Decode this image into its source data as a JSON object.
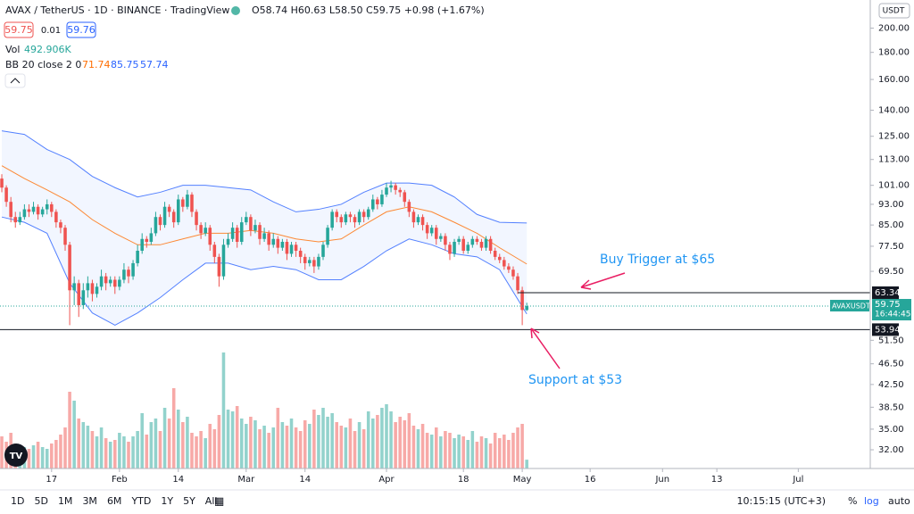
{
  "header": {
    "title": "AVAX / TetherUS · 1D · BINANCE · TradingView",
    "ohlc": "O58.74 H60.63 L58.50 C59.75 +0.98 (+1.67%)",
    "bid": "59.75",
    "spread": "0.01",
    "ask": "59.76",
    "currency": "USDT"
  },
  "toolbar": {
    "ranges": [
      "1D",
      "5D",
      "1M",
      "3M",
      "6M",
      "YTD",
      "1Y",
      "5Y",
      "All"
    ],
    "clock": "10:15:15 (UTC+3)",
    "options": [
      "%",
      "log",
      "auto"
    ]
  },
  "chart_data": {
    "type": "candlestick",
    "up_color": "#26a69a",
    "down_color": "#ef5350",
    "log_scale": true,
    "ylim": [
      29.5,
      226
    ],
    "yticks": [
      {
        "value": 200,
        "label": "200.00"
      },
      {
        "value": 180,
        "label": "180.00"
      },
      {
        "value": 160,
        "label": "160.00"
      },
      {
        "value": 140,
        "label": "140.00"
      },
      {
        "value": 125,
        "label": "125.00"
      },
      {
        "value": 113,
        "label": "113.00"
      },
      {
        "value": 101,
        "label": "101.00"
      },
      {
        "value": 93,
        "label": "93.00"
      },
      {
        "value": 85,
        "label": "85.00"
      },
      {
        "value": 77.5,
        "label": "77.50"
      },
      {
        "value": 69.5,
        "label": "69.50"
      },
      {
        "value": 51.5,
        "label": "51.50"
      },
      {
        "value": 46.5,
        "label": "46.50"
      },
      {
        "value": 42.5,
        "label": "42.50"
      },
      {
        "value": 38.5,
        "label": "38.50"
      },
      {
        "value": 35,
        "label": "35.00"
      },
      {
        "value": 32,
        "label": "32.00"
      }
    ],
    "xlim": [
      -0.4,
      191.9
    ],
    "xticks": [
      {
        "value": 11,
        "label": "17"
      },
      {
        "value": 26,
        "label": "Feb"
      },
      {
        "value": 39,
        "label": "14"
      },
      {
        "value": 54,
        "label": "Mar"
      },
      {
        "value": 67,
        "label": "14"
      },
      {
        "value": 85,
        "label": "Apr"
      },
      {
        "value": 102,
        "label": "18"
      },
      {
        "value": 115,
        "label": "May"
      },
      {
        "value": 130,
        "label": "16"
      },
      {
        "value": 146,
        "label": "Jun"
      },
      {
        "value": 158,
        "label": "13"
      },
      {
        "value": 176,
        "label": "Jul"
      }
    ],
    "candles": [
      [
        104,
        106,
        98,
        100
      ],
      [
        100,
        101,
        92,
        94
      ],
      [
        94,
        96,
        86,
        88
      ],
      [
        88,
        90,
        84,
        86
      ],
      [
        86,
        90,
        85,
        88
      ],
      [
        88,
        93,
        87,
        91
      ],
      [
        91,
        93,
        88,
        90
      ],
      [
        90,
        94,
        89,
        92
      ],
      [
        92,
        93,
        87,
        89
      ],
      [
        89,
        92,
        88,
        91
      ],
      [
        91,
        95,
        89,
        93
      ],
      [
        93,
        94,
        88,
        90
      ],
      [
        90,
        91,
        84,
        86
      ],
      [
        86,
        87,
        82,
        84
      ],
      [
        84,
        85,
        76,
        78
      ],
      [
        78,
        79,
        55,
        64
      ],
      [
        64,
        68,
        60,
        66
      ],
      [
        66,
        67,
        57,
        60
      ],
      [
        60,
        66,
        59,
        64
      ],
      [
        64,
        68,
        62,
        66
      ],
      [
        66,
        67,
        61,
        63
      ],
      [
        63,
        66,
        62,
        65
      ],
      [
        65,
        70,
        64,
        68
      ],
      [
        68,
        69,
        64,
        66
      ],
      [
        66,
        68,
        65,
        67
      ],
      [
        67,
        68,
        63,
        65
      ],
      [
        65,
        68,
        64,
        67
      ],
      [
        67,
        72,
        66,
        70
      ],
      [
        70,
        71,
        66,
        68
      ],
      [
        68,
        73,
        67,
        72
      ],
      [
        72,
        78,
        71,
        76
      ],
      [
        76,
        82,
        75,
        80
      ],
      [
        80,
        81,
        77,
        79
      ],
      [
        79,
        84,
        78,
        82
      ],
      [
        82,
        90,
        81,
        88
      ],
      [
        88,
        89,
        83,
        85
      ],
      [
        85,
        94,
        84,
        92
      ],
      [
        92,
        93,
        88,
        90
      ],
      [
        90,
        91,
        84,
        86
      ],
      [
        86,
        97,
        85,
        95
      ],
      [
        95,
        96,
        90,
        92
      ],
      [
        92,
        99,
        91,
        97
      ],
      [
        97,
        98,
        88,
        90
      ],
      [
        90,
        91,
        83,
        85
      ],
      [
        85,
        86,
        80,
        82
      ],
      [
        82,
        86,
        81,
        84
      ],
      [
        84,
        85,
        76,
        78
      ],
      [
        78,
        79,
        72,
        74
      ],
      [
        74,
        75,
        65,
        68
      ],
      [
        68,
        80,
        67,
        78
      ],
      [
        78,
        82,
        77,
        80
      ],
      [
        80,
        86,
        79,
        84
      ],
      [
        84,
        85,
        77,
        79
      ],
      [
        79,
        88,
        78,
        86
      ],
      [
        86,
        90,
        85,
        88
      ],
      [
        88,
        89,
        81,
        83
      ],
      [
        83,
        87,
        82,
        85
      ],
      [
        85,
        86,
        78,
        80
      ],
      [
        80,
        84,
        79,
        82
      ],
      [
        82,
        83,
        76,
        78
      ],
      [
        78,
        82,
        77,
        80
      ],
      [
        80,
        81,
        75,
        77
      ],
      [
        77,
        80,
        76,
        79
      ],
      [
        79,
        80,
        73,
        75
      ],
      [
        75,
        79,
        74,
        78
      ],
      [
        78,
        79,
        74,
        76
      ],
      [
        76,
        77,
        72,
        74
      ],
      [
        74,
        75,
        70,
        72
      ],
      [
        72,
        74,
        71,
        73
      ],
      [
        73,
        74,
        69,
        71
      ],
      [
        71,
        75,
        70,
        74
      ],
      [
        74,
        79,
        73,
        78
      ],
      [
        78,
        85,
        77,
        84
      ],
      [
        84,
        91,
        83,
        90
      ],
      [
        90,
        91,
        86,
        88
      ],
      [
        88,
        89,
        84,
        86
      ],
      [
        86,
        90,
        85,
        89
      ],
      [
        89,
        90,
        86,
        88
      ],
      [
        88,
        89,
        84,
        86
      ],
      [
        86,
        91,
        85,
        90
      ],
      [
        90,
        91,
        86,
        88
      ],
      [
        88,
        92,
        87,
        91
      ],
      [
        91,
        97,
        90,
        95
      ],
      [
        95,
        96,
        91,
        93
      ],
      [
        93,
        99,
        92,
        97
      ],
      [
        97,
        102,
        96,
        100
      ],
      [
        100,
        103,
        98,
        101
      ],
      [
        101,
        102,
        97,
        99
      ],
      [
        99,
        100,
        96,
        98
      ],
      [
        98,
        99,
        92,
        94
      ],
      [
        94,
        95,
        88,
        90
      ],
      [
        90,
        91,
        84,
        86
      ],
      [
        86,
        89,
        85,
        88
      ],
      [
        88,
        89,
        83,
        85
      ],
      [
        85,
        86,
        80,
        82
      ],
      [
        82,
        85,
        81,
        84
      ],
      [
        84,
        85,
        78,
        80
      ],
      [
        80,
        82,
        79,
        81
      ],
      [
        81,
        82,
        76,
        78
      ],
      [
        78,
        79,
        73,
        75
      ],
      [
        75,
        80,
        74,
        79
      ],
      [
        79,
        81,
        78,
        80
      ],
      [
        80,
        81,
        75,
        76
      ],
      [
        76,
        79,
        75,
        78
      ],
      [
        78,
        81,
        77,
        80
      ],
      [
        80,
        81,
        78,
        79
      ],
      [
        79,
        80,
        76,
        77
      ],
      [
        77,
        81,
        76,
        80
      ],
      [
        80,
        81,
        75,
        76
      ],
      [
        76,
        77,
        73,
        74
      ],
      [
        74,
        75,
        72,
        73
      ],
      [
        73,
        74,
        70,
        71
      ],
      [
        71,
        72,
        69,
        70
      ],
      [
        70,
        71,
        67,
        68
      ],
      [
        68,
        69,
        63,
        64
      ],
      [
        64,
        65,
        55,
        58.74
      ],
      [
        58.74,
        60.63,
        58.5,
        59.75
      ]
    ],
    "volume": {
      "label": "Vol",
      "value_label": "492.906K",
      "values": [
        1800,
        1500,
        2000,
        1400,
        1300,
        1200,
        1100,
        1300,
        1500,
        1200,
        1100,
        1400,
        1600,
        1900,
        2300,
        4300,
        3800,
        2800,
        2600,
        2400,
        2100,
        1800,
        2300,
        1700,
        1500,
        1600,
        2000,
        1800,
        1500,
        1800,
        2100,
        3100,
        1900,
        2600,
        2800,
        2100,
        3400,
        2800,
        4500,
        3300,
        2600,
        2900,
        2000,
        1800,
        2100,
        1700,
        2500,
        2200,
        3000,
        6500,
        3300,
        3200,
        3500,
        2800,
        2500,
        2900,
        2700,
        2200,
        2400,
        2000,
        2300,
        3400,
        2600,
        2400,
        2800,
        2300,
        2100,
        2700,
        2500,
        3300,
        3000,
        3400,
        2900,
        3100,
        2600,
        2400,
        2300,
        2800,
        2100,
        2600,
        2200,
        3200,
        2800,
        3000,
        3400,
        3600,
        3200,
        2600,
        2900,
        2700,
        3100,
        2400,
        2200,
        2500,
        2000,
        1900,
        2300,
        1800,
        2100,
        2000,
        1700,
        1900,
        1800,
        1600,
        2100,
        1500,
        1800,
        1700,
        1400,
        2000,
        1700,
        1900,
        1600,
        2000,
        2300,
        2500,
        492.906
      ]
    },
    "bollinger": {
      "label": "BB 20 close 2 0",
      "upper_color": "#2962ff",
      "middle_color": "#ff6d00",
      "x": [
        0,
        5,
        10,
        15,
        20,
        25,
        30,
        35,
        40,
        45,
        50,
        55,
        60,
        65,
        70,
        75,
        80,
        85,
        90,
        95,
        100,
        105,
        110,
        116
      ],
      "upper": [
        128,
        126,
        118,
        113,
        105,
        100,
        96,
        98,
        101,
        101,
        100,
        99,
        94,
        90,
        91,
        93,
        98,
        102,
        102,
        101,
        96,
        89,
        86,
        85.75
      ],
      "middle": [
        110,
        104,
        99,
        94,
        87,
        82,
        78,
        78,
        80,
        82,
        82,
        83,
        82,
        80,
        79,
        80,
        85,
        90,
        92,
        90,
        86,
        82,
        77,
        71.74
      ],
      "lower": [
        88,
        86,
        82,
        66,
        58,
        55,
        58,
        62,
        67,
        72,
        72,
        70,
        71,
        70,
        67,
        67,
        71,
        76,
        80,
        78,
        75,
        74,
        70,
        57.74
      ]
    },
    "price_lines": [
      {
        "value": 63.34,
        "label": "63.34"
      },
      {
        "value": 53.94,
        "label": "53.94"
      }
    ],
    "symbol_tag": "AVAXUSDT",
    "countdown": "16:44:45",
    "annotations": [
      "Buy Trigger at $65",
      "Support at $53"
    ]
  }
}
